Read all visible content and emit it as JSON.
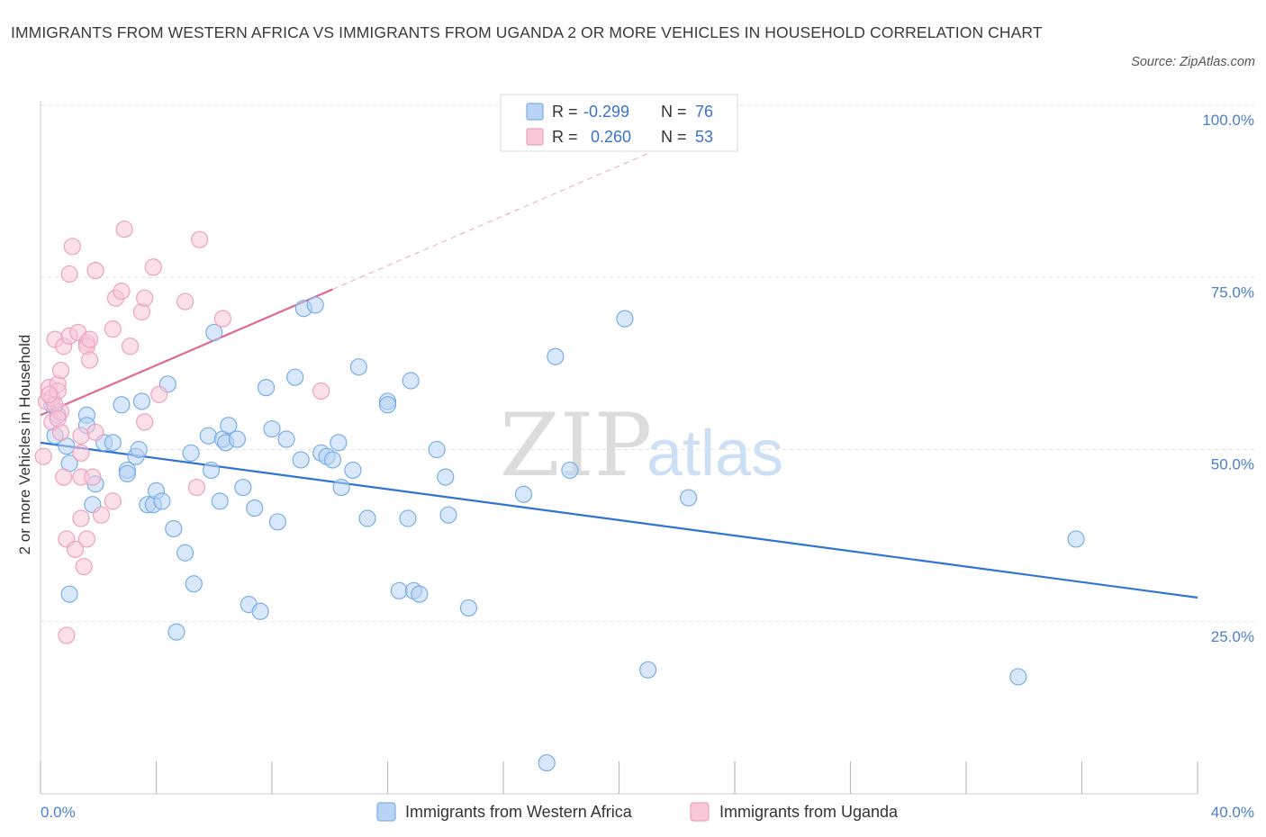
{
  "chart_data": {
    "type": "scatter",
    "title": "IMMIGRANTS FROM WESTERN AFRICA VS IMMIGRANTS FROM UGANDA 2 OR MORE VEHICLES IN HOUSEHOLD CORRELATION CHART",
    "source": "Source: ZipAtlas.com",
    "ylabel": "2 or more Vehicles in Household",
    "xlabel": "",
    "xlim": [
      0,
      40
    ],
    "ylim": [
      0,
      100
    ],
    "x_tick_labels": [
      "0.0%",
      "40.0%"
    ],
    "y_ticks": [
      {
        "value": 25,
        "label": "25.0%"
      },
      {
        "value": 50,
        "label": "50.0%"
      },
      {
        "value": 75,
        "label": "75.0%"
      },
      {
        "value": 100,
        "label": "100.0%"
      }
    ],
    "grid": true,
    "legend_placement": "top-center",
    "watermark": {
      "zip": "ZIP",
      "atlas": "atlas"
    },
    "series": [
      {
        "name": "Immigrants from Western Africa",
        "color": "#7aaee8",
        "fill": "#b8d3f4",
        "line_color": "#2f74d0",
        "r_label": "R =",
        "r_value": "-0.299",
        "n_label": "N =",
        "n_value": "76",
        "trend": {
          "x0": 0,
          "y0": 51,
          "x1": 40,
          "y1": 28.5,
          "solid_until": 40
        },
        "points": [
          [
            0.4,
            56.5
          ],
          [
            0.6,
            55
          ],
          [
            0.5,
            52
          ],
          [
            0.9,
            50.5
          ],
          [
            1.0,
            48
          ],
          [
            1.6,
            55
          ],
          [
            1.6,
            53.5
          ],
          [
            1.9,
            45
          ],
          [
            1.8,
            42
          ],
          [
            2.2,
            51
          ],
          [
            2.5,
            51
          ],
          [
            2.8,
            56.5
          ],
          [
            3.0,
            47
          ],
          [
            3.0,
            46.5
          ],
          [
            3.3,
            49
          ],
          [
            3.4,
            50
          ],
          [
            3.5,
            57
          ],
          [
            3.7,
            42
          ],
          [
            3.9,
            42
          ],
          [
            4.0,
            44
          ],
          [
            4.2,
            42.5
          ],
          [
            4.4,
            59.5
          ],
          [
            4.6,
            38.5
          ],
          [
            5.0,
            35
          ],
          [
            5.2,
            49.5
          ],
          [
            5.3,
            30.5
          ],
          [
            5.8,
            52
          ],
          [
            5.9,
            47
          ],
          [
            6.0,
            67
          ],
          [
            6.2,
            42.5
          ],
          [
            6.3,
            51.5
          ],
          [
            6.4,
            51
          ],
          [
            6.5,
            53.5
          ],
          [
            6.8,
            51.5
          ],
          [
            7.0,
            44.5
          ],
          [
            7.2,
            27.5
          ],
          [
            7.4,
            41.5
          ],
          [
            7.6,
            26.5
          ],
          [
            7.8,
            59
          ],
          [
            8.0,
            53
          ],
          [
            8.2,
            39.5
          ],
          [
            8.5,
            51.5
          ],
          [
            8.8,
            60.5
          ],
          [
            9.0,
            48.5
          ],
          [
            9.1,
            70.5
          ],
          [
            9.5,
            71
          ],
          [
            9.7,
            49.5
          ],
          [
            9.9,
            49
          ],
          [
            10.1,
            48.5
          ],
          [
            10.3,
            51
          ],
          [
            10.4,
            44.5
          ],
          [
            10.8,
            47
          ],
          [
            11.0,
            62
          ],
          [
            11.3,
            40
          ],
          [
            12.0,
            57
          ],
          [
            12.0,
            56.5
          ],
          [
            12.4,
            29.5
          ],
          [
            12.7,
            40
          ],
          [
            12.8,
            60
          ],
          [
            12.9,
            29.5
          ],
          [
            13.1,
            29
          ],
          [
            13.7,
            50
          ],
          [
            14.0,
            46
          ],
          [
            14.1,
            40.5
          ],
          [
            14.8,
            27
          ],
          [
            16.7,
            43.5
          ],
          [
            17.5,
            4.5
          ],
          [
            17.8,
            63.5
          ],
          [
            18.3,
            47
          ],
          [
            20.2,
            69
          ],
          [
            21.0,
            18
          ],
          [
            22.4,
            43
          ],
          [
            33.8,
            17
          ],
          [
            35.8,
            37
          ],
          [
            1.0,
            29
          ],
          [
            4.7,
            23.5
          ]
        ]
      },
      {
        "name": "Immigrants from Uganda",
        "color": "#eea1bd",
        "fill": "#f8c7d8",
        "line_color": "#e06993",
        "r_label": "R =",
        "r_value": "0.260",
        "n_label": "N =",
        "n_value": "53",
        "trend": {
          "x0": 0,
          "y0": 55,
          "x1": 21,
          "y1": 93,
          "solid_until": 10.1
        },
        "points": [
          [
            0.1,
            49
          ],
          [
            0.2,
            57
          ],
          [
            0.3,
            59
          ],
          [
            0.4,
            57.5
          ],
          [
            0.4,
            54
          ],
          [
            0.5,
            66
          ],
          [
            0.6,
            59.5
          ],
          [
            0.6,
            58.5
          ],
          [
            0.7,
            52.5
          ],
          [
            0.7,
            55.5
          ],
          [
            0.7,
            61.5
          ],
          [
            0.8,
            65
          ],
          [
            0.8,
            46
          ],
          [
            0.9,
            23
          ],
          [
            0.9,
            37
          ],
          [
            1.0,
            75.5
          ],
          [
            1.0,
            66.5
          ],
          [
            1.1,
            79.5
          ],
          [
            1.2,
            35.5
          ],
          [
            1.3,
            67
          ],
          [
            1.4,
            46
          ],
          [
            1.4,
            40
          ],
          [
            1.4,
            52
          ],
          [
            1.4,
            49.5
          ],
          [
            1.5,
            33
          ],
          [
            1.6,
            65.5
          ],
          [
            1.6,
            65
          ],
          [
            1.6,
            37
          ],
          [
            1.7,
            63
          ],
          [
            1.7,
            66
          ],
          [
            1.8,
            46
          ],
          [
            1.9,
            52.5
          ],
          [
            1.9,
            76
          ],
          [
            2.1,
            40.5
          ],
          [
            2.5,
            67.5
          ],
          [
            2.5,
            42.5
          ],
          [
            2.6,
            72
          ],
          [
            2.8,
            73
          ],
          [
            2.9,
            82
          ],
          [
            3.1,
            65
          ],
          [
            3.5,
            70
          ],
          [
            3.6,
            72
          ],
          [
            3.6,
            54
          ],
          [
            3.9,
            76.5
          ],
          [
            4.1,
            58
          ],
          [
            5.0,
            71.5
          ],
          [
            5.4,
            44.5
          ],
          [
            5.5,
            80.5
          ],
          [
            6.3,
            69
          ],
          [
            9.7,
            58.5
          ],
          [
            0.5,
            56.5
          ],
          [
            0.3,
            58
          ],
          [
            0.6,
            54.5
          ]
        ]
      }
    ]
  }
}
